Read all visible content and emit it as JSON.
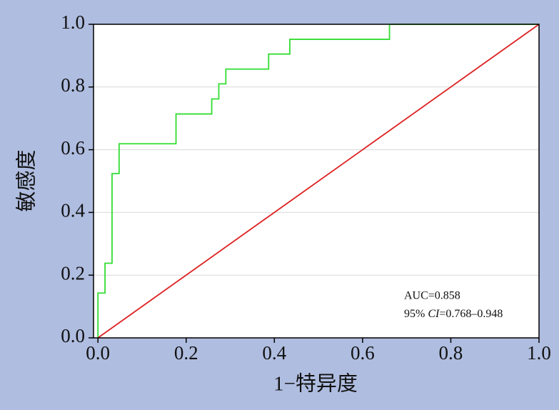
{
  "chart_data": {
    "type": "line",
    "xlabel": "1−特异度",
    "ylabel": "敏感度",
    "xlim": [
      -0.01,
      1.0
    ],
    "ylim": [
      0,
      1.0
    ],
    "xticks": [
      {
        "value": 0,
        "label": "0.0"
      },
      0.2,
      0.4,
      0.6,
      0.8,
      {
        "value": 1,
        "label": "1.0"
      }
    ],
    "yticks": [
      {
        "value": 0,
        "label": "0.0"
      },
      0.2,
      0.4,
      0.6,
      0.8,
      {
        "value": 1,
        "label": "1.0"
      }
    ],
    "grid": true,
    "series": [
      {
        "color": "#33dd33",
        "x": [
          0,
          0,
          0.016,
          0.016,
          0.032,
          0.032,
          0.048,
          0.048,
          0.177,
          0.177,
          0.258,
          0.258,
          0.274,
          0.274,
          0.29,
          0.29,
          0.387,
          0.387,
          0.435,
          0.435,
          0.661,
          0.661,
          1.0
        ],
        "values": [
          0,
          0.143,
          0.143,
          0.238,
          0.238,
          0.524,
          0.524,
          0.619,
          0.619,
          0.714,
          0.714,
          0.762,
          0.762,
          0.81,
          0.81,
          0.857,
          0.857,
          0.905,
          0.905,
          0.952,
          0.952,
          1.0,
          1.0
        ]
      },
      {
        "color": "#dd2222",
        "x": [
          0,
          1.0
        ],
        "values": [
          0,
          1.0
        ]
      }
    ],
    "annotation": {
      "line1": "AUC=0.858",
      "line2": [
        "95% ",
        "CI",
        "=0.768–0.948"
      ]
    }
  }
}
